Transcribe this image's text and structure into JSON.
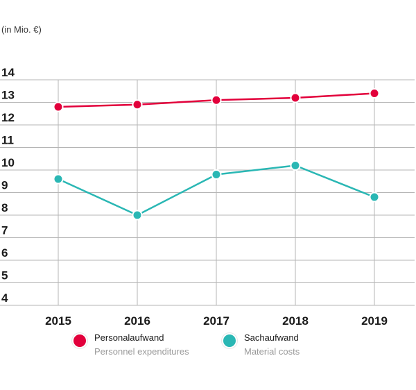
{
  "unit_label": "(in Mio. €)",
  "colors": {
    "personnel": "#e2003b",
    "material": "#2ab7b4",
    "grid": "#b5b5b5"
  },
  "chart_data": {
    "type": "line",
    "x": [
      "2015",
      "2016",
      "2017",
      "2018",
      "2019"
    ],
    "ylim": [
      4,
      14
    ],
    "yticks": [
      "4",
      "5",
      "6",
      "7",
      "8",
      "9",
      "10",
      "11",
      "12",
      "13",
      "14"
    ],
    "grid": true,
    "legend_position": "bottom",
    "series": [
      {
        "key": "personnel",
        "values": [
          12.8,
          12.9,
          13.1,
          13.2,
          13.4
        ]
      },
      {
        "key": "material",
        "values": [
          9.6,
          8.0,
          9.8,
          10.2,
          8.8
        ]
      }
    ]
  },
  "legend": [
    {
      "key": "personnel",
      "label": "Personalaufwand",
      "sublabel": "Personnel expenditures"
    },
    {
      "key": "material",
      "label": "Sachaufwand",
      "sublabel": "Material costs"
    }
  ]
}
